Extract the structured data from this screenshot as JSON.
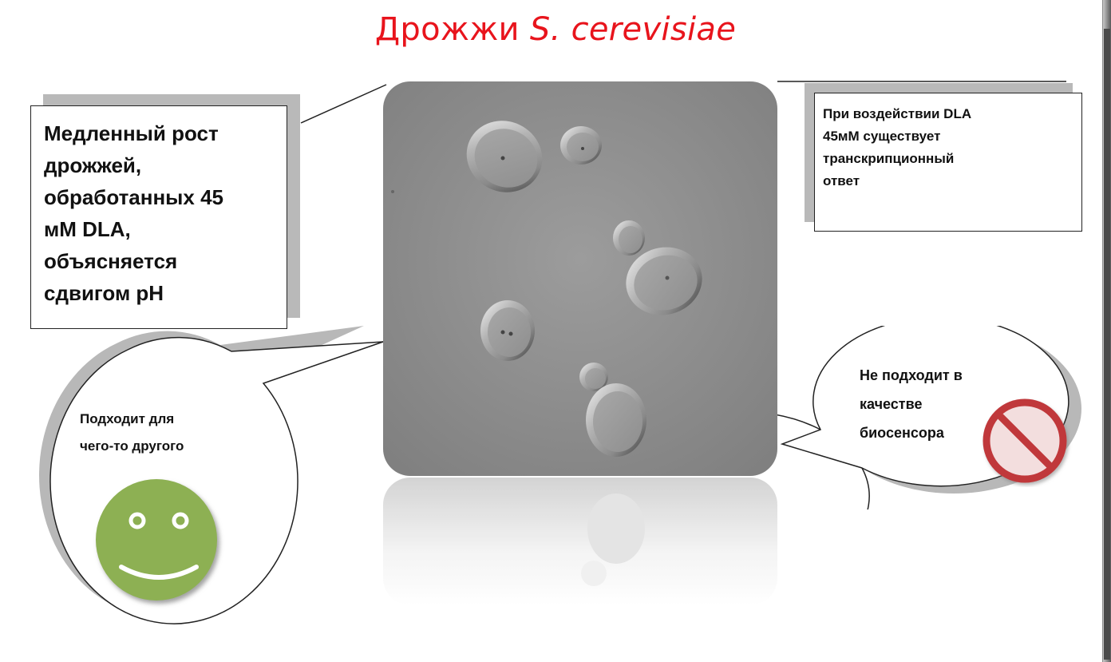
{
  "title": {
    "prefix": "Дрожжи ",
    "italic": "S. cerevisiae",
    "color": "#e8141c"
  },
  "left_callout": {
    "lines": [
      "Медленный рост",
      "дрожжей,",
      "обработанных 45",
      "мМ DLA,",
      "объясняется",
      "сдвигом pH"
    ]
  },
  "right_callout": {
    "lines": [
      "При воздействии DLA",
      "45мМ существует",
      "транскрипционный",
      "ответ"
    ]
  },
  "left_bubble": {
    "lines": [
      "Подходит для",
      "чего-то другого"
    ],
    "icon": "smiley-face-icon",
    "icon_color": "#8db052"
  },
  "right_bubble": {
    "lines": [
      "Не подходит в",
      "качестве",
      "биосенсора"
    ],
    "icon": "no-entry-sign-icon",
    "icon_color": "#c0393b"
  },
  "image": {
    "description_icon": "yeast-microscopy-image"
  }
}
